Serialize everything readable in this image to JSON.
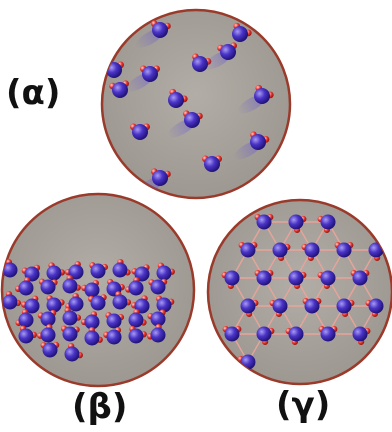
{
  "labels": {
    "alpha": "(α)",
    "beta": "(β)",
    "gamma": "(γ)"
  },
  "panels": [
    {
      "key": "alpha",
      "state": "gas",
      "molecule_count": 14
    },
    {
      "key": "beta",
      "state": "liquid",
      "molecule_count": 39
    },
    {
      "key": "gamma",
      "state": "solid",
      "molecule_count": 24
    }
  ],
  "colors": {
    "background": "#ffffff",
    "circle_fill": "#aaa59e",
    "circle_rim": "#9a3a2a",
    "oxygen": "#3c27b8",
    "hydrogen": "#e8332a",
    "bond_line": "#e7a49a"
  }
}
